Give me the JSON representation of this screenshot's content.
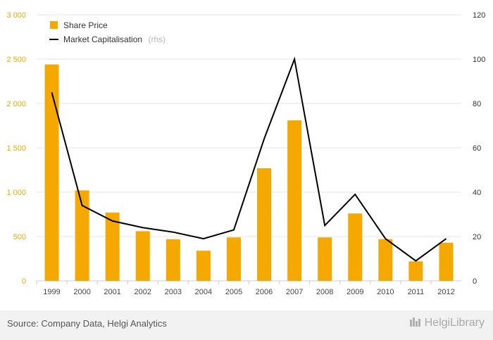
{
  "chart_data": {
    "type": "bar",
    "categories": [
      "1999",
      "2000",
      "2001",
      "2002",
      "2003",
      "2004",
      "2005",
      "2006",
      "2007",
      "2008",
      "2009",
      "2010",
      "2011",
      "2012"
    ],
    "series": [
      {
        "name": "Share Price",
        "type": "bar",
        "axis": "left",
        "color": "#f5a800",
        "values": [
          2440,
          1020,
          770,
          560,
          470,
          340,
          490,
          1270,
          1810,
          490,
          760,
          470,
          220,
          430
        ]
      },
      {
        "name": "Market Capitalisation",
        "type": "line",
        "axis": "right",
        "color": "#000000",
        "values": [
          85,
          34,
          27,
          24,
          22,
          19,
          23,
          64,
          100,
          25,
          39,
          19,
          9,
          19
        ]
      }
    ],
    "y_left": {
      "min": 0,
      "max": 3000,
      "ticks": [
        "0",
        "500",
        "1 000",
        "1 500",
        "2 000",
        "2 500",
        "3 000"
      ]
    },
    "y_right": {
      "min": 0,
      "max": 120,
      "ticks": [
        "0",
        "20",
        "40",
        "60",
        "80",
        "100",
        "120"
      ]
    },
    "legend": {
      "position": "top-left",
      "entries": [
        {
          "label": "Share Price",
          "note": ""
        },
        {
          "label": "Market Capitalisation",
          "note": "(rhs)"
        }
      ]
    },
    "grid": true
  },
  "footer": {
    "source": "Source: Company Data, Helgi Analytics",
    "brand": "HelgiLibrary"
  }
}
